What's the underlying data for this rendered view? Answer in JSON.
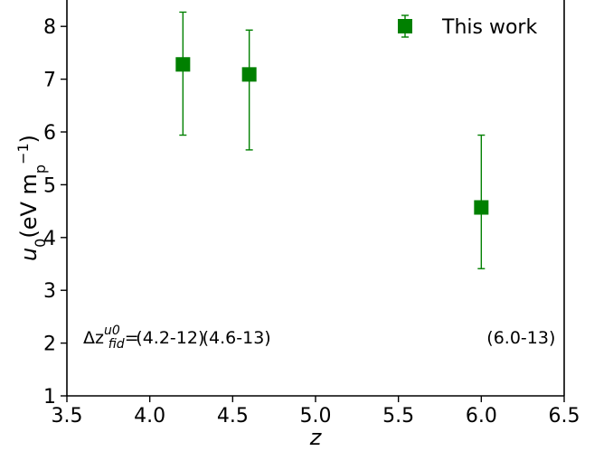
{
  "chart_data": {
    "type": "scatter",
    "xlabel": "z",
    "ylabel": "u0(eV mp−1)",
    "xlim": [
      3.5,
      6.5
    ],
    "ylim": [
      1,
      8.5
    ],
    "xticks": [
      "3.5",
      "4.0",
      "4.5",
      "5.0",
      "5.5",
      "6.0",
      "6.5"
    ],
    "yticks": [
      "1",
      "2",
      "3",
      "4",
      "5",
      "6",
      "7",
      "8"
    ],
    "grid": false,
    "legend_position": "top-right",
    "series": [
      {
        "name": "This work",
        "color": "#008000",
        "marker": "square",
        "points": [
          {
            "x": 4.2,
            "y": 7.28,
            "y_low": 5.94,
            "y_high": 8.27
          },
          {
            "x": 4.6,
            "y": 7.09,
            "y_low": 5.66,
            "y_high": 7.93
          },
          {
            "x": 6.0,
            "y": 4.57,
            "y_low": 3.41,
            "y_high": 5.94
          }
        ]
      }
    ],
    "annotations": {
      "delta_label": "Δz",
      "delta_sup": "u0",
      "delta_sub": "fid",
      "delta_eq": "=",
      "ranges": [
        {
          "x": 4.2,
          "text": "(4.2-12)"
        },
        {
          "x": 4.6,
          "text": "(4.6-13)"
        },
        {
          "x": 6.0,
          "text": "(6.0-13)"
        }
      ]
    }
  }
}
